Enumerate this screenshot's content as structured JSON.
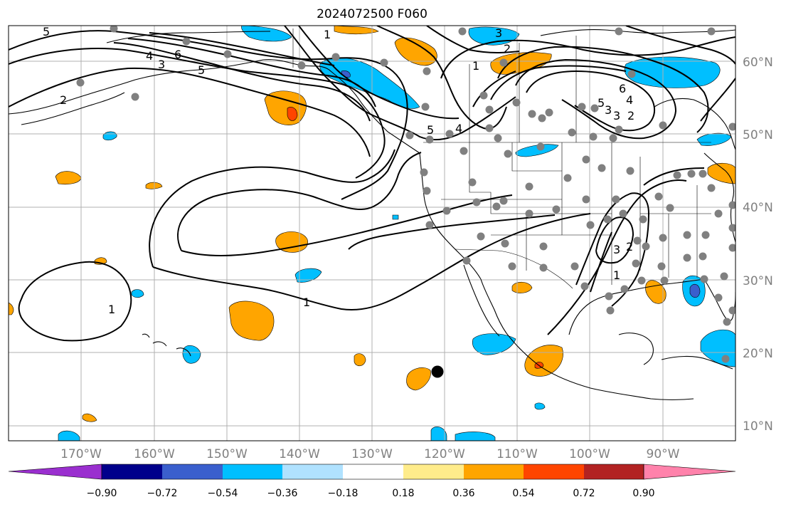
{
  "title": "2024072500 F060",
  "lat_labels": [
    "60°N",
    "50°N",
    "40°N",
    "30°N",
    "20°N",
    "10°N"
  ],
  "lon_labels": [
    "170°W",
    "160°W",
    "150°W",
    "140°W",
    "130°W",
    "120°W",
    "110°W",
    "100°W",
    "90°W"
  ],
  "contour_labels": [
    "5",
    "4",
    "6",
    "3",
    "5",
    "2",
    "1",
    "3",
    "2",
    "1",
    "6",
    "5",
    "3",
    "4",
    "3",
    "2",
    "5",
    "4",
    "1",
    "1",
    "3",
    "2",
    "1"
  ],
  "colorbar": {
    "tick_labels": [
      "−0.90",
      "−0.72",
      "−0.54",
      "−0.36",
      "−0.18",
      "0.18",
      "0.36",
      "0.54",
      "0.72",
      "0.90"
    ],
    "colors": [
      "#9a2fcf",
      "#00008b",
      "#3a5fcd",
      "#00bfff",
      "#b0e2ff",
      "#ffffff",
      "#ffec8b",
      "#ffa500",
      "#ff4500",
      "#b22222",
      "#ff82ab"
    ]
  },
  "colors": {
    "grid": "#b0b0b0",
    "coast": "#000000",
    "station": "#808080",
    "marker": "#000000"
  }
}
